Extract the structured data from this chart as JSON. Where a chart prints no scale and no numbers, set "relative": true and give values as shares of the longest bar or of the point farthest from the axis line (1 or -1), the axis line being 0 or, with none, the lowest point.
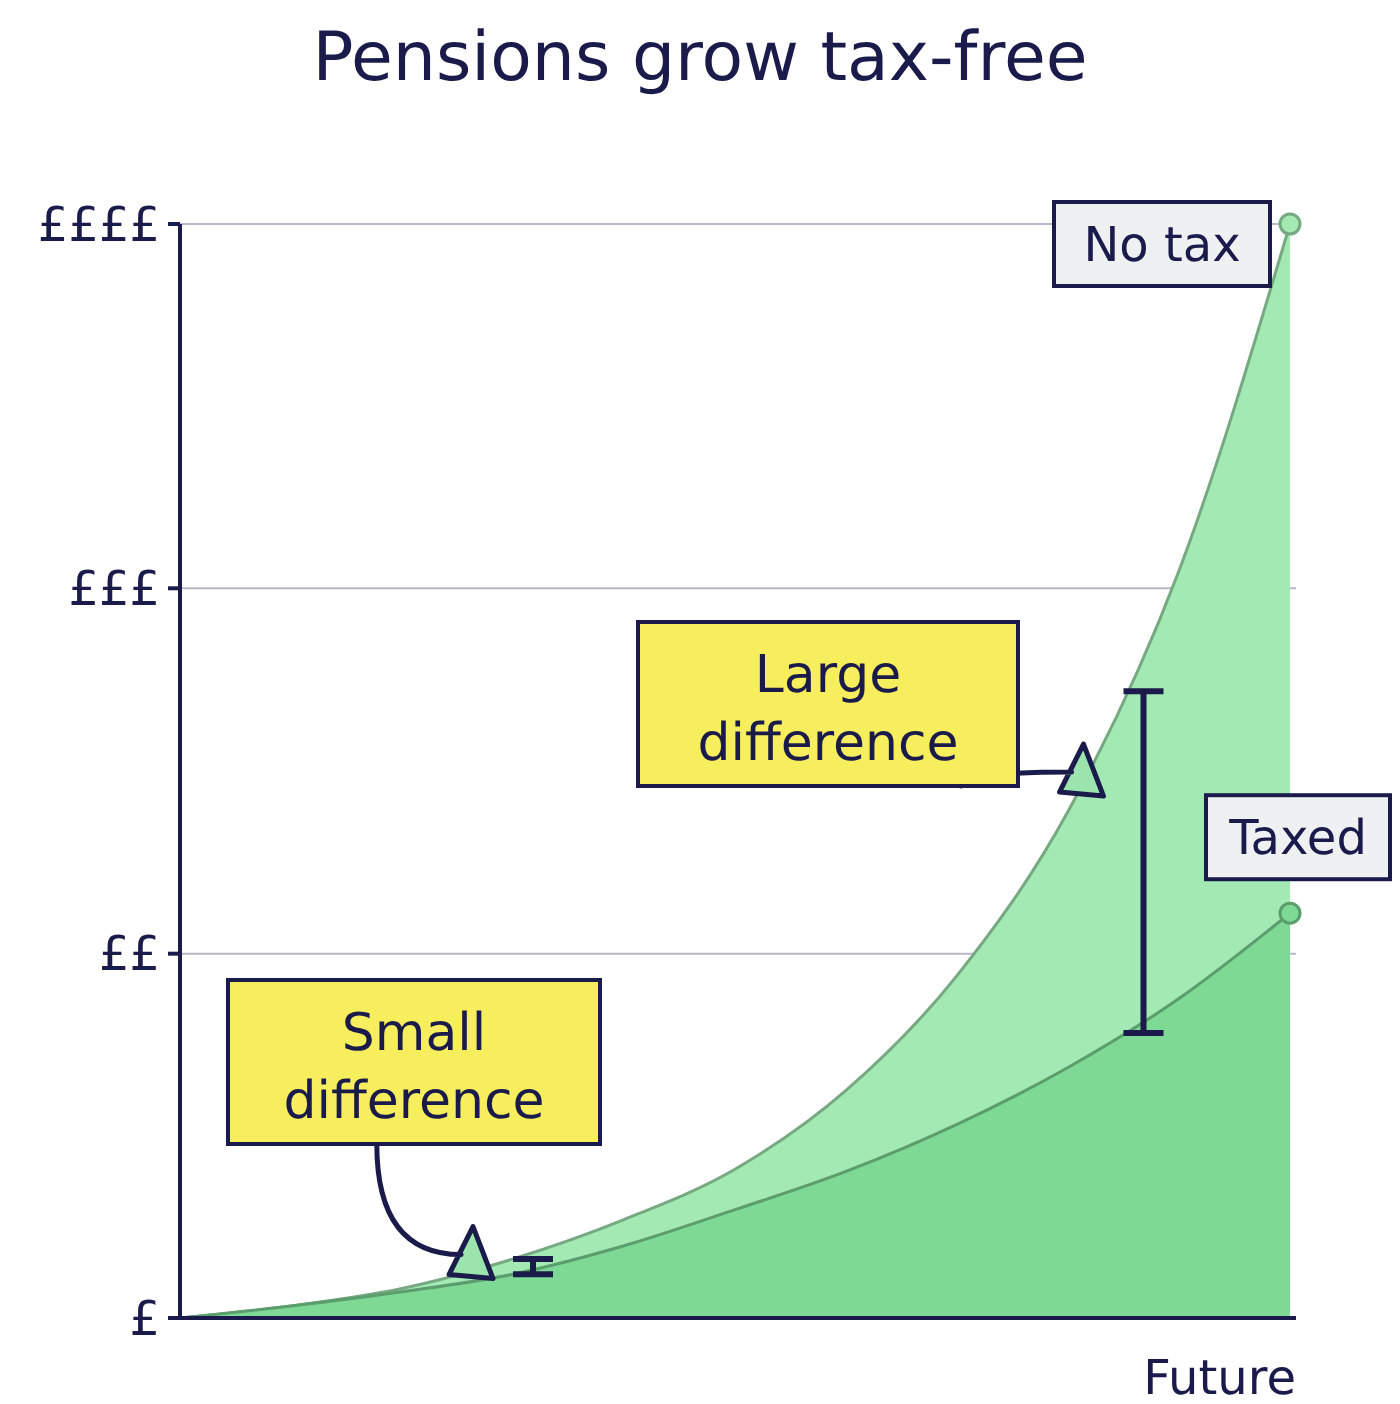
{
  "chart_data": {
    "type": "area",
    "title": "Pensions grow tax-free",
    "xlabel": "Future",
    "relative": true,
    "categories": [
      null,
      null,
      null,
      null,
      null,
      null,
      null,
      null,
      null,
      null,
      null
    ],
    "series": [
      {
        "name": "No tax",
        "color": "#a3e9b3",
        "values": [
          0,
          0.011,
          0.027,
          0.054,
          0.09,
          0.136,
          0.208,
          0.313,
          0.463,
          0.683,
          1
        ]
      },
      {
        "name": "Taxed",
        "color": "#7ed995",
        "values": [
          0,
          0.011,
          0.024,
          0.04,
          0.066,
          0.099,
          0.134,
          0.177,
          0.229,
          0.292,
          0.37
        ]
      }
    ],
    "ref_lines": [
      {
        "axis": "y",
        "value": 0,
        "label": "£"
      },
      {
        "axis": "y",
        "value": 0.333,
        "label": "££",
        "color": "#b8b8c8"
      },
      {
        "axis": "y",
        "value": 0.667,
        "label": "£££",
        "color": "#b8b8c8"
      },
      {
        "axis": "y",
        "value": 1,
        "label": "££££",
        "color": "#b8b8c8"
      }
    ],
    "annotations": [
      "Small difference",
      "Large difference"
    ]
  }
}
